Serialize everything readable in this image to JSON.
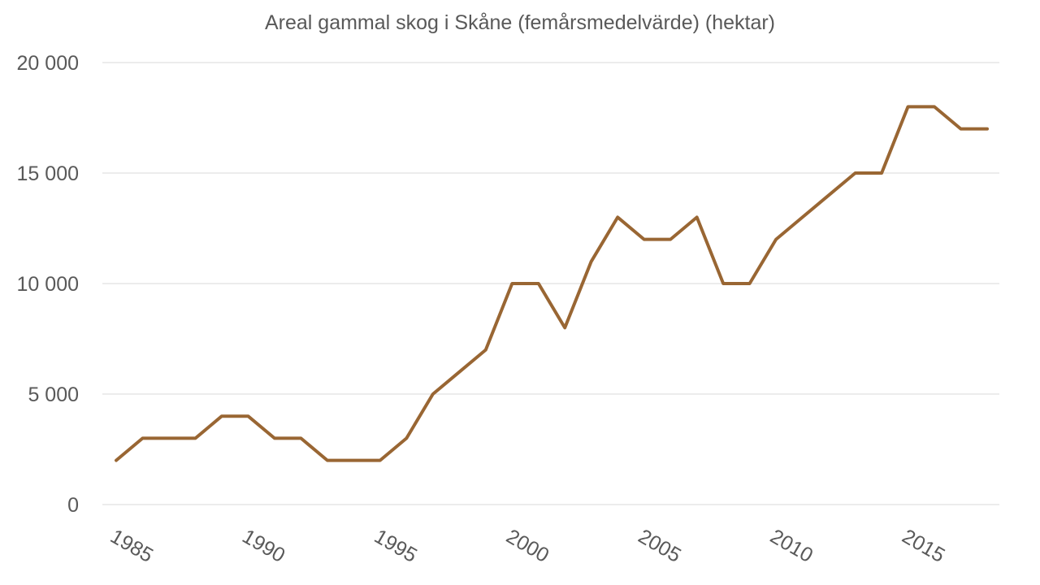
{
  "chart_data": {
    "type": "line",
    "title": "Areal gammal skog i Skåne (femårsmedelvärde) (hektar)",
    "xlabel": "",
    "ylabel": "",
    "x": [
      1985,
      1986,
      1987,
      1988,
      1989,
      1990,
      1991,
      1992,
      1993,
      1994,
      1995,
      1996,
      1997,
      1998,
      1999,
      2000,
      2001,
      2002,
      2003,
      2004,
      2005,
      2006,
      2007,
      2008,
      2009,
      2010,
      2011,
      2012,
      2013,
      2014,
      2015,
      2016,
      2017,
      2018
    ],
    "series": [
      {
        "name": "",
        "color": "#996633",
        "values": [
          2000,
          3000,
          3000,
          3000,
          4000,
          4000,
          3000,
          3000,
          2000,
          2000,
          2000,
          3000,
          5000,
          6000,
          7000,
          10000,
          10000,
          8000,
          11000,
          13000,
          12000,
          12000,
          13000,
          10000,
          10000,
          12000,
          13000,
          14000,
          15000,
          15000,
          18000,
          18000,
          17000,
          17000
        ]
      }
    ],
    "ylim": [
      0,
      20000
    ],
    "yticks": [
      0,
      5000,
      10000,
      15000,
      20000
    ],
    "ytick_labels": [
      "0",
      "5 000",
      "10 000",
      "15 000",
      "20 000"
    ],
    "xticks": [
      1985,
      1990,
      1995,
      2000,
      2005,
      2010,
      2015
    ],
    "xtick_labels": [
      "1985",
      "1990",
      "1995",
      "2000",
      "2005",
      "2010",
      "2015"
    ],
    "grid": "horizontal",
    "legend": "none"
  }
}
